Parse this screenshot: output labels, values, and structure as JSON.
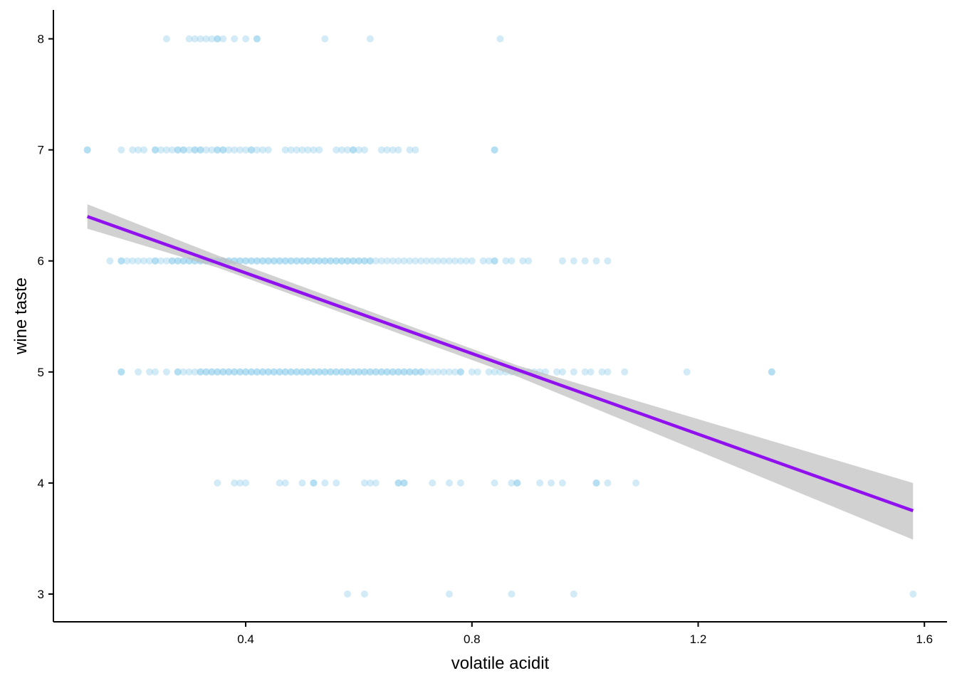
{
  "chart_data": {
    "type": "scatter",
    "title": "",
    "xlabel": "volatile acidit",
    "ylabel": "wine taste",
    "xlim": [
      0.06,
      1.64
    ],
    "ylim": [
      2.75,
      8.26
    ],
    "x_ticks": [
      0.4,
      0.8,
      1.2,
      1.6
    ],
    "x_tick_labels": [
      "0.4",
      "0.8",
      "1.2",
      "1.6"
    ],
    "y_ticks": [
      3,
      4,
      5,
      6,
      7,
      8
    ],
    "y_tick_labels": [
      "3",
      "4",
      "5",
      "6",
      "7",
      "8"
    ],
    "grid": false,
    "legend": "none",
    "point_color": "#7dc5e8",
    "point_opacity": 0.35,
    "fit": {
      "method": "linear",
      "color": "#9010ee",
      "band_color": "#bdbdbd",
      "line": [
        [
          0.12,
          6.4
        ],
        [
          1.58,
          3.75
        ]
      ],
      "ci_upper": [
        [
          0.12,
          6.51
        ],
        [
          0.35,
          6.05
        ],
        [
          0.88,
          5.06
        ],
        [
          1.58,
          4.0
        ]
      ],
      "ci_lower": [
        [
          0.12,
          6.29
        ],
        [
          0.35,
          5.94
        ],
        [
          0.88,
          4.96
        ],
        [
          1.58,
          3.49
        ]
      ]
    },
    "points": [
      {
        "y": 8,
        "x": [
          0.26,
          0.3,
          0.31,
          0.32,
          0.33,
          0.34,
          0.35,
          0.35,
          0.36,
          0.38,
          0.4,
          0.42,
          0.42,
          0.54,
          0.62,
          0.85
        ]
      },
      {
        "y": 7,
        "x": [
          0.12,
          0.12,
          0.18,
          0.2,
          0.21,
          0.22,
          0.24,
          0.24,
          0.25,
          0.26,
          0.27,
          0.28,
          0.28,
          0.29,
          0.29,
          0.3,
          0.31,
          0.31,
          0.32,
          0.32,
          0.33,
          0.34,
          0.35,
          0.35,
          0.36,
          0.36,
          0.37,
          0.38,
          0.39,
          0.4,
          0.41,
          0.41,
          0.42,
          0.43,
          0.44,
          0.47,
          0.48,
          0.49,
          0.5,
          0.51,
          0.52,
          0.53,
          0.56,
          0.57,
          0.58,
          0.59,
          0.59,
          0.6,
          0.61,
          0.64,
          0.65,
          0.66,
          0.67,
          0.69,
          0.7,
          0.84,
          0.84
        ]
      },
      {
        "y": 6,
        "x": [
          0.16,
          0.18,
          0.18,
          0.19,
          0.2,
          0.21,
          0.22,
          0.23,
          0.24,
          0.24,
          0.25,
          0.26,
          0.27,
          0.27,
          0.28,
          0.28,
          0.29,
          0.29,
          0.3,
          0.3,
          0.31,
          0.31,
          0.32,
          0.32,
          0.33,
          0.33,
          0.34,
          0.34,
          0.35,
          0.35,
          0.36,
          0.36,
          0.37,
          0.37,
          0.38,
          0.38,
          0.39,
          0.39,
          0.4,
          0.4,
          0.41,
          0.41,
          0.42,
          0.42,
          0.43,
          0.43,
          0.44,
          0.44,
          0.45,
          0.45,
          0.46,
          0.46,
          0.47,
          0.47,
          0.48,
          0.48,
          0.49,
          0.49,
          0.5,
          0.5,
          0.51,
          0.51,
          0.52,
          0.52,
          0.53,
          0.53,
          0.54,
          0.54,
          0.55,
          0.55,
          0.56,
          0.56,
          0.57,
          0.57,
          0.58,
          0.58,
          0.59,
          0.59,
          0.6,
          0.6,
          0.61,
          0.61,
          0.62,
          0.62,
          0.63,
          0.64,
          0.65,
          0.66,
          0.67,
          0.68,
          0.69,
          0.7,
          0.71,
          0.72,
          0.73,
          0.74,
          0.75,
          0.76,
          0.77,
          0.78,
          0.79,
          0.8,
          0.82,
          0.83,
          0.84,
          0.84,
          0.86,
          0.87,
          0.89,
          0.9,
          0.96,
          0.98,
          1.0,
          1.02,
          1.04
        ]
      },
      {
        "y": 5,
        "x": [
          0.18,
          0.18,
          0.21,
          0.23,
          0.24,
          0.26,
          0.28,
          0.28,
          0.29,
          0.3,
          0.31,
          0.32,
          0.32,
          0.33,
          0.33,
          0.34,
          0.34,
          0.35,
          0.35,
          0.36,
          0.36,
          0.37,
          0.37,
          0.38,
          0.38,
          0.39,
          0.39,
          0.4,
          0.4,
          0.41,
          0.41,
          0.42,
          0.42,
          0.43,
          0.43,
          0.44,
          0.44,
          0.45,
          0.45,
          0.46,
          0.46,
          0.47,
          0.47,
          0.48,
          0.48,
          0.49,
          0.49,
          0.5,
          0.5,
          0.51,
          0.51,
          0.52,
          0.52,
          0.53,
          0.53,
          0.54,
          0.54,
          0.55,
          0.55,
          0.56,
          0.56,
          0.57,
          0.57,
          0.58,
          0.58,
          0.59,
          0.59,
          0.6,
          0.6,
          0.61,
          0.61,
          0.62,
          0.62,
          0.63,
          0.63,
          0.64,
          0.64,
          0.65,
          0.65,
          0.66,
          0.66,
          0.67,
          0.67,
          0.68,
          0.68,
          0.69,
          0.69,
          0.7,
          0.7,
          0.71,
          0.71,
          0.72,
          0.73,
          0.74,
          0.75,
          0.76,
          0.77,
          0.78,
          0.78,
          0.8,
          0.81,
          0.83,
          0.84,
          0.85,
          0.86,
          0.87,
          0.88,
          0.89,
          0.9,
          0.91,
          0.92,
          0.93,
          0.95,
          0.96,
          0.98,
          1.0,
          1.01,
          1.03,
          1.04,
          1.07,
          1.18,
          1.33,
          1.33
        ]
      },
      {
        "y": 4,
        "x": [
          0.35,
          0.38,
          0.39,
          0.4,
          0.46,
          0.47,
          0.5,
          0.52,
          0.52,
          0.54,
          0.56,
          0.61,
          0.62,
          0.63,
          0.67,
          0.67,
          0.68,
          0.68,
          0.73,
          0.76,
          0.78,
          0.84,
          0.87,
          0.88,
          0.88,
          0.92,
          0.94,
          0.96,
          1.02,
          1.02,
          1.04,
          1.09
        ]
      },
      {
        "y": 3,
        "x": [
          0.58,
          0.61,
          0.76,
          0.87,
          0.98,
          1.58
        ]
      }
    ]
  }
}
